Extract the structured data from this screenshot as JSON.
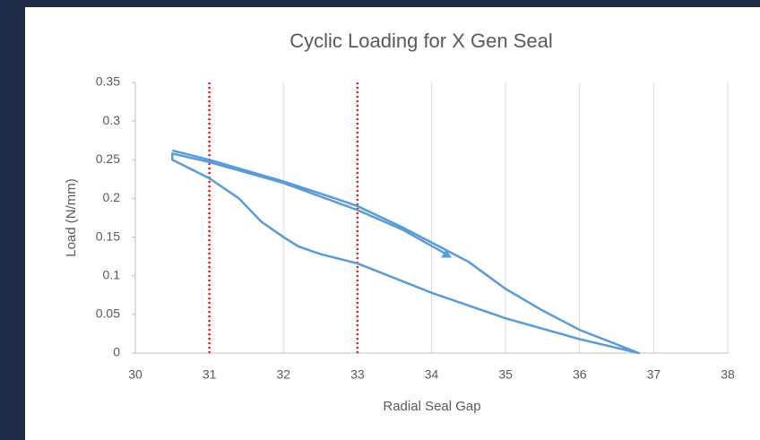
{
  "chart_data": {
    "type": "line",
    "title": "Cyclic Loading for X Gen Seal",
    "x_label": "Radial Seal Gap",
    "y_label": "Load (N/mm)",
    "xlim": [
      30,
      38
    ],
    "ylim": [
      0,
      0.35
    ],
    "xticks": [
      30,
      31,
      32,
      33,
      34,
      35,
      36,
      37,
      38
    ],
    "yticks": [
      0,
      0.05,
      0.1,
      0.15,
      0.2,
      0.25,
      0.3,
      0.35
    ],
    "grid": "x",
    "vlines": [
      31,
      33
    ],
    "vline_color": "#e02020",
    "series": [
      {
        "color": "#5b9bd5",
        "x": [
          30.5,
          31,
          32,
          32.7,
          33,
          33.6,
          34,
          34.5,
          35,
          35.5,
          36,
          36.8,
          36,
          35,
          34,
          33,
          32.5,
          32.2,
          32,
          31.7,
          31.4,
          31,
          30.5,
          30.5,
          31,
          32,
          33,
          33.6,
          34.2
        ],
        "values": [
          0.262,
          0.25,
          0.222,
          0.2,
          0.19,
          0.163,
          0.143,
          0.118,
          0.083,
          0.055,
          0.03,
          0,
          0.018,
          0.045,
          0.078,
          0.116,
          0.128,
          0.138,
          0.15,
          0.17,
          0.2,
          0.226,
          0.25,
          0.258,
          0.247,
          0.22,
          0.185,
          0.16,
          0.128
        ]
      }
    ]
  }
}
